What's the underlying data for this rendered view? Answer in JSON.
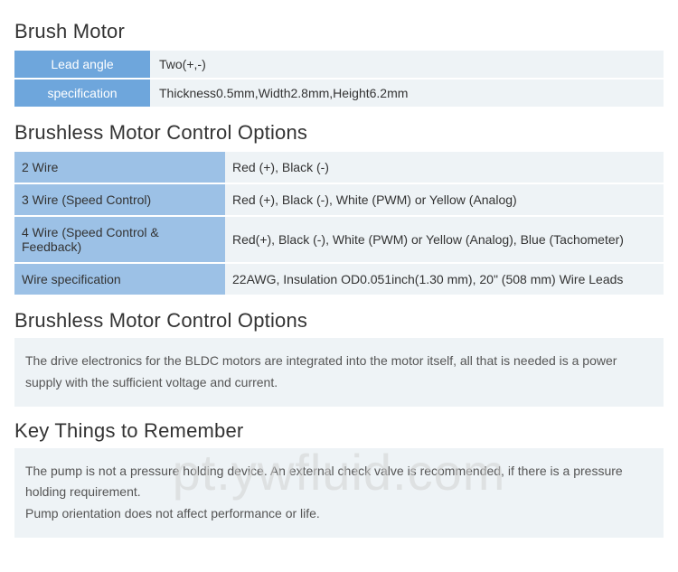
{
  "colors": {
    "bm_label_bg": "#6ea6dc",
    "bm_label_text": "#ffffff",
    "bl_label_bg": "#9cc1e6",
    "bl_label_text": "#333333",
    "value_bg": "#eef3f6",
    "value_text": "#333333",
    "title_text": "#333333",
    "info_text": "#555555",
    "watermark": "rgba(210,210,210,0.55)"
  },
  "brush_motor": {
    "title": "Brush Motor",
    "rows": [
      {
        "label": "Lead angle",
        "value": "Two(+,-)"
      },
      {
        "label": "specification",
        "value": "Thickness0.5mm,Width2.8mm,Height6.2mm"
      }
    ]
  },
  "brushless_options": {
    "title": "Brushless Motor Control Options",
    "rows": [
      {
        "label": "2 Wire",
        "value": "Red (+), Black (-)"
      },
      {
        "label": "3 Wire (Speed Control)",
        "value": "Red (+), Black (-), White (PWM) or Yellow (Analog)"
      },
      {
        "label": "4 Wire (Speed Control & Feedback)",
        "value": "Red(+), Black (-), White (PWM) or Yellow (Analog), Blue (Tachometer)"
      },
      {
        "label": "Wire specification",
        "value": "22AWG, Insulation OD0.051inch(1.30 mm), 20\" (508 mm) Wire Leads"
      }
    ]
  },
  "brushless_note": {
    "title": "Brushless Motor Control Options",
    "text": "The drive electronics for the BLDC motors are integrated into the motor itself, all that is needed is a power supply with the sufficient voltage and current."
  },
  "key_things": {
    "title": "Key Things to Remember",
    "line1": "The pump is not a pressure holding device. An external check valve is recommended, if there is a pressure holding requirement.",
    "line2": "Pump orientation does not affect performance or life."
  },
  "watermark": "pt.ywfluid.com"
}
